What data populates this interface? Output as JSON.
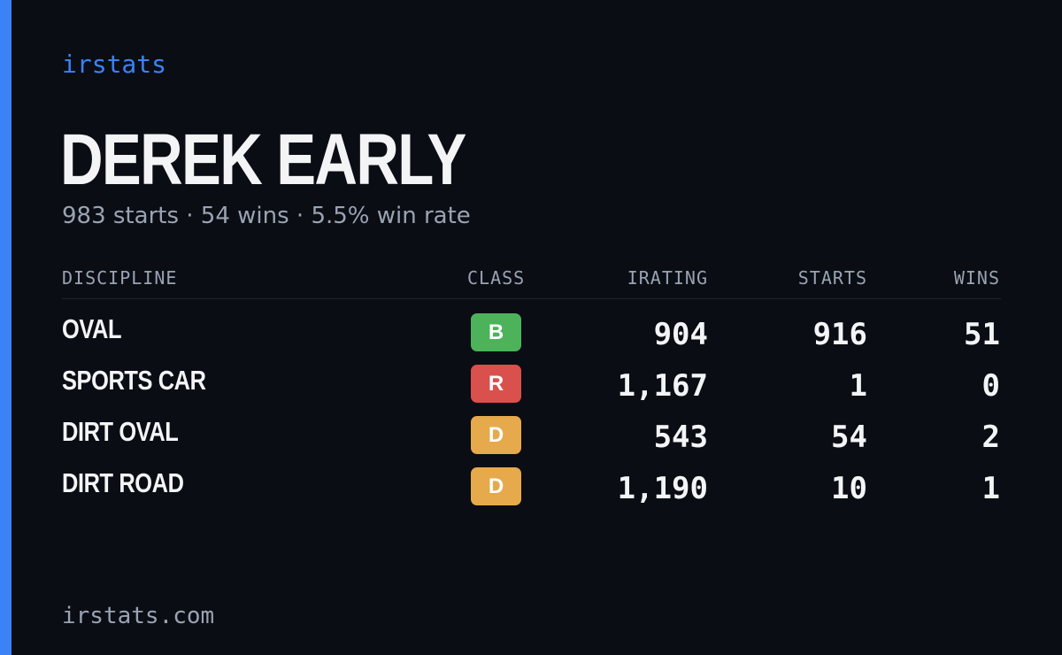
{
  "brand": "irstats",
  "driver": {
    "name": "DEREK EARLY",
    "summary": "983 starts · 54 wins · 5.5% win rate"
  },
  "table": {
    "headers": {
      "discipline": "DISCIPLINE",
      "class": "CLASS",
      "irating": "IRATING",
      "starts": "STARTS",
      "wins": "WINS"
    },
    "rows": [
      {
        "discipline": "OVAL",
        "class": "B",
        "class_color": "#4cb35a",
        "irating": "904",
        "starts": "916",
        "wins": "51"
      },
      {
        "discipline": "SPORTS CAR",
        "class": "R",
        "class_color": "#d9504c",
        "irating": "1,167",
        "starts": "1",
        "wins": "0"
      },
      {
        "discipline": "DIRT OVAL",
        "class": "D",
        "class_color": "#e6a94c",
        "irating": "543",
        "starts": "54",
        "wins": "2"
      },
      {
        "discipline": "DIRT ROAD",
        "class": "D",
        "class_color": "#e6a94c",
        "irating": "1,190",
        "starts": "10",
        "wins": "1"
      }
    ]
  },
  "footer": "irstats.com",
  "colors": {
    "accent": "#3b82f6",
    "background": "#0a0d14"
  }
}
